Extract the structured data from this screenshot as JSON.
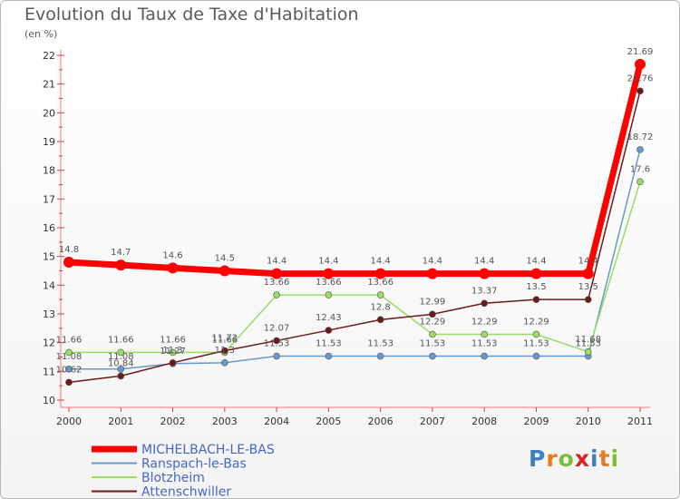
{
  "header": {
    "title": "Evolution du Taux de Taxe d'Habitation",
    "subtitle": "(en %)"
  },
  "logo": {
    "letters": [
      "P",
      "r",
      "o",
      "x",
      "i",
      "t",
      "i"
    ],
    "colors": [
      "#3f7fc2",
      "#e87a1f",
      "#7cbf3a",
      "#d6261f",
      "#3f7fc2",
      "#e87a1f",
      "#7cbf3a"
    ]
  },
  "chart_data": {
    "type": "line",
    "title": "Evolution du Taux de Taxe d'Habitation",
    "subtitle": "(en %)",
    "xlabel": "",
    "ylabel": "",
    "ylim": [
      10,
      22
    ],
    "yticks": [
      "10",
      "11",
      "12",
      "13",
      "14",
      "15",
      "16",
      "17",
      "18",
      "19",
      "20",
      "21",
      "22"
    ],
    "grid": false,
    "legend_position": "bottom-left",
    "x": [
      "2000",
      "2001",
      "2002",
      "2003",
      "2004",
      "2005",
      "2006",
      "2007",
      "2008",
      "2009",
      "2010",
      "2011"
    ],
    "series": [
      {
        "name": "MICHELBACH-LE-BAS",
        "color": "#ff0000",
        "values": [
          14.8,
          14.7,
          14.6,
          14.5,
          14.4,
          14.4,
          14.4,
          14.4,
          14.4,
          14.4,
          14.4,
          21.69
        ],
        "labels": [
          "14.8",
          "14.7",
          "14.6",
          "14.5",
          "14.4",
          "14.4",
          "14.4",
          "14.4",
          "14.4",
          "14.4",
          "14.4",
          "21.69"
        ]
      },
      {
        "name": "Ranspach-le-Bas",
        "color": "#6699cc",
        "values": [
          11.08,
          11.08,
          11.27,
          11.3,
          11.53,
          11.53,
          11.53,
          11.53,
          11.53,
          11.53,
          11.53,
          18.72
        ],
        "labels": [
          "11.08",
          "11.08",
          "11.27",
          "11.3",
          "11.53",
          "11.53",
          "11.53",
          "11.53",
          "11.53",
          "11.53",
          "11.53",
          "18.72"
        ]
      },
      {
        "name": "Blotzheim",
        "color": "#99dd66",
        "values": [
          11.66,
          11.66,
          11.66,
          11.66,
          13.66,
          13.66,
          13.66,
          12.29,
          12.29,
          12.29,
          11.68,
          17.6
        ],
        "labels": [
          "11.66",
          "11.66",
          "11.66",
          "11.66",
          "13.66",
          "13.66",
          "13.66",
          "12.29",
          "12.29",
          "12.29",
          "11.68",
          "17.6"
        ]
      },
      {
        "name": "Attenschwiller",
        "color": "#6b1a1a",
        "values": [
          10.62,
          10.84,
          11.3,
          11.72,
          12.07,
          12.43,
          12.8,
          12.99,
          13.37,
          13.5,
          13.5,
          20.76
        ],
        "labels": [
          "10.62",
          "10.84",
          "11.3",
          "11.72",
          "12.07",
          "12.43",
          "12.8",
          "12.99",
          "13.37",
          "13.5",
          "13.5",
          "20.76"
        ]
      }
    ]
  }
}
